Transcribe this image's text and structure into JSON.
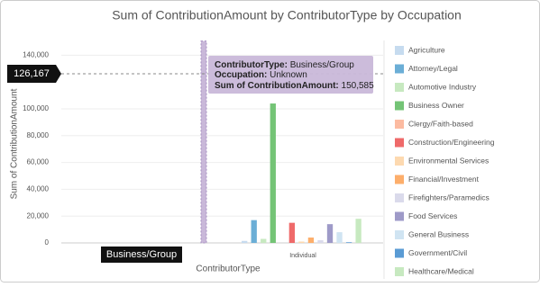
{
  "chart_data": {
    "type": "bar",
    "title": "Sum of ContributionAmount by ContributorType by Occupation",
    "x_label": "ContributorType",
    "y_label": "Sum of ContributionAmount",
    "categories": [
      "Business/Group",
      "Individual"
    ],
    "series": [
      {
        "name": "Agriculture",
        "color": "#c6dbef",
        "values": [
          0,
          1500
        ]
      },
      {
        "name": "Attorney/Legal",
        "color": "#6baed6",
        "values": [
          0,
          17000
        ]
      },
      {
        "name": "Automotive Industry",
        "color": "#c7e9c0",
        "values": [
          0,
          3000
        ]
      },
      {
        "name": "Business Owner",
        "color": "#74c476",
        "values": [
          0,
          104000
        ]
      },
      {
        "name": "Clergy/Faith-based",
        "color": "#fcbba1",
        "values": [
          0,
          0
        ]
      },
      {
        "name": "Construction/Engineering",
        "color": "#ef6a6a",
        "values": [
          0,
          15000
        ]
      },
      {
        "name": "Environmental Services",
        "color": "#fdd9b0",
        "values": [
          0,
          1000
        ]
      },
      {
        "name": "Financial/Investment",
        "color": "#fdae6b",
        "values": [
          0,
          4000
        ]
      },
      {
        "name": "Firefighters/Paramedics",
        "color": "#dadaeb",
        "values": [
          0,
          2000
        ]
      },
      {
        "name": "Food Services",
        "color": "#9e9ac8",
        "values": [
          0,
          14000
        ]
      },
      {
        "name": "General Business",
        "color": "#d0e4f2",
        "values": [
          0,
          8000
        ]
      },
      {
        "name": "Government/Civil",
        "color": "#5a9bd4",
        "values": [
          0,
          500
        ]
      },
      {
        "name": "Healthcare/Medical",
        "color": "#c7e9c0",
        "values": [
          0,
          18000
        ]
      }
    ],
    "ylim": [
      0,
      151000
    ],
    "yticks": [
      0,
      {
        "value": 20000,
        "label": "20,000"
      },
      {
        "value": 40000,
        "label": "40,000"
      },
      {
        "value": 60000,
        "label": "60,000"
      },
      {
        "value": 80000,
        "label": "80,000"
      },
      {
        "value": 100000,
        "label": "100,000"
      },
      {
        "value": 140000,
        "label": "140,000"
      }
    ],
    "grid": true,
    "crosshair": {
      "value": 126167,
      "label": "126,167"
    },
    "tooltip": {
      "category_label": "ContributorType:",
      "category": "Business/Group",
      "occupation_label": "Occupation:",
      "occupation": "Unknown",
      "value_label": "Sum of ContributionAmount:",
      "value": 150585,
      "value_text": "150,585",
      "color": "#c9b8d9"
    }
  }
}
